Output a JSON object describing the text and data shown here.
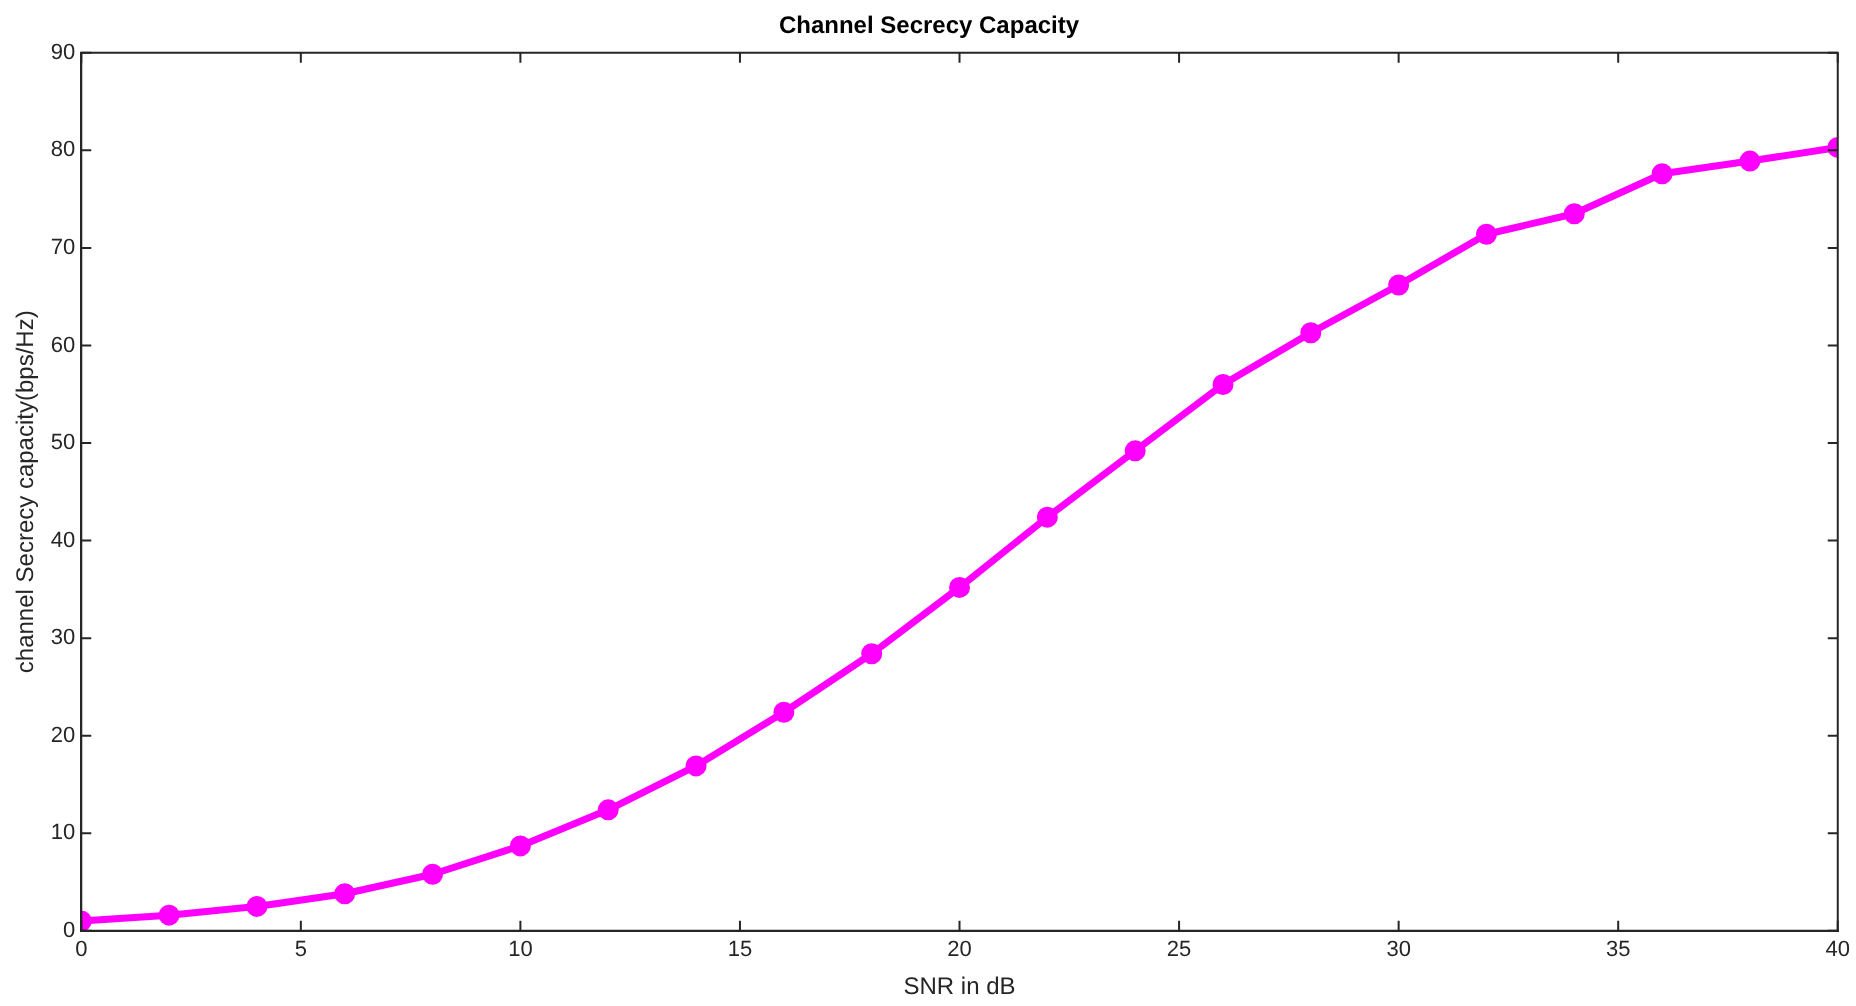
{
  "chart_data": {
    "type": "line",
    "title": "Channel Secrecy Capacity",
    "xlabel": "SNR in dB",
    "ylabel": "channel Secrecy capacity(bps/Hz)",
    "x": [
      0,
      2,
      4,
      6,
      8,
      10,
      12,
      14,
      16,
      18,
      20,
      22,
      24,
      26,
      28,
      30,
      32,
      34,
      36,
      38,
      40
    ],
    "series": [
      {
        "color": "#ff00ff",
        "values": [
          1.0,
          1.6,
          2.5,
          3.8,
          5.8,
          8.7,
          12.4,
          16.9,
          22.4,
          28.4,
          35.2,
          42.4,
          49.2,
          56.0,
          61.3,
          66.2,
          71.4,
          73.5,
          77.6,
          78.9,
          80.3
        ]
      }
    ],
    "xlim": [
      0,
      40
    ],
    "xticks": [
      0,
      5,
      10,
      15,
      20,
      25,
      30,
      35,
      40
    ],
    "ylim": [
      0,
      90
    ],
    "yticks": [
      0,
      10,
      20,
      30,
      40,
      50,
      60,
      70,
      80,
      90
    ],
    "grid": false,
    "legend": false,
    "marker": "circle",
    "line_style": "solid"
  }
}
